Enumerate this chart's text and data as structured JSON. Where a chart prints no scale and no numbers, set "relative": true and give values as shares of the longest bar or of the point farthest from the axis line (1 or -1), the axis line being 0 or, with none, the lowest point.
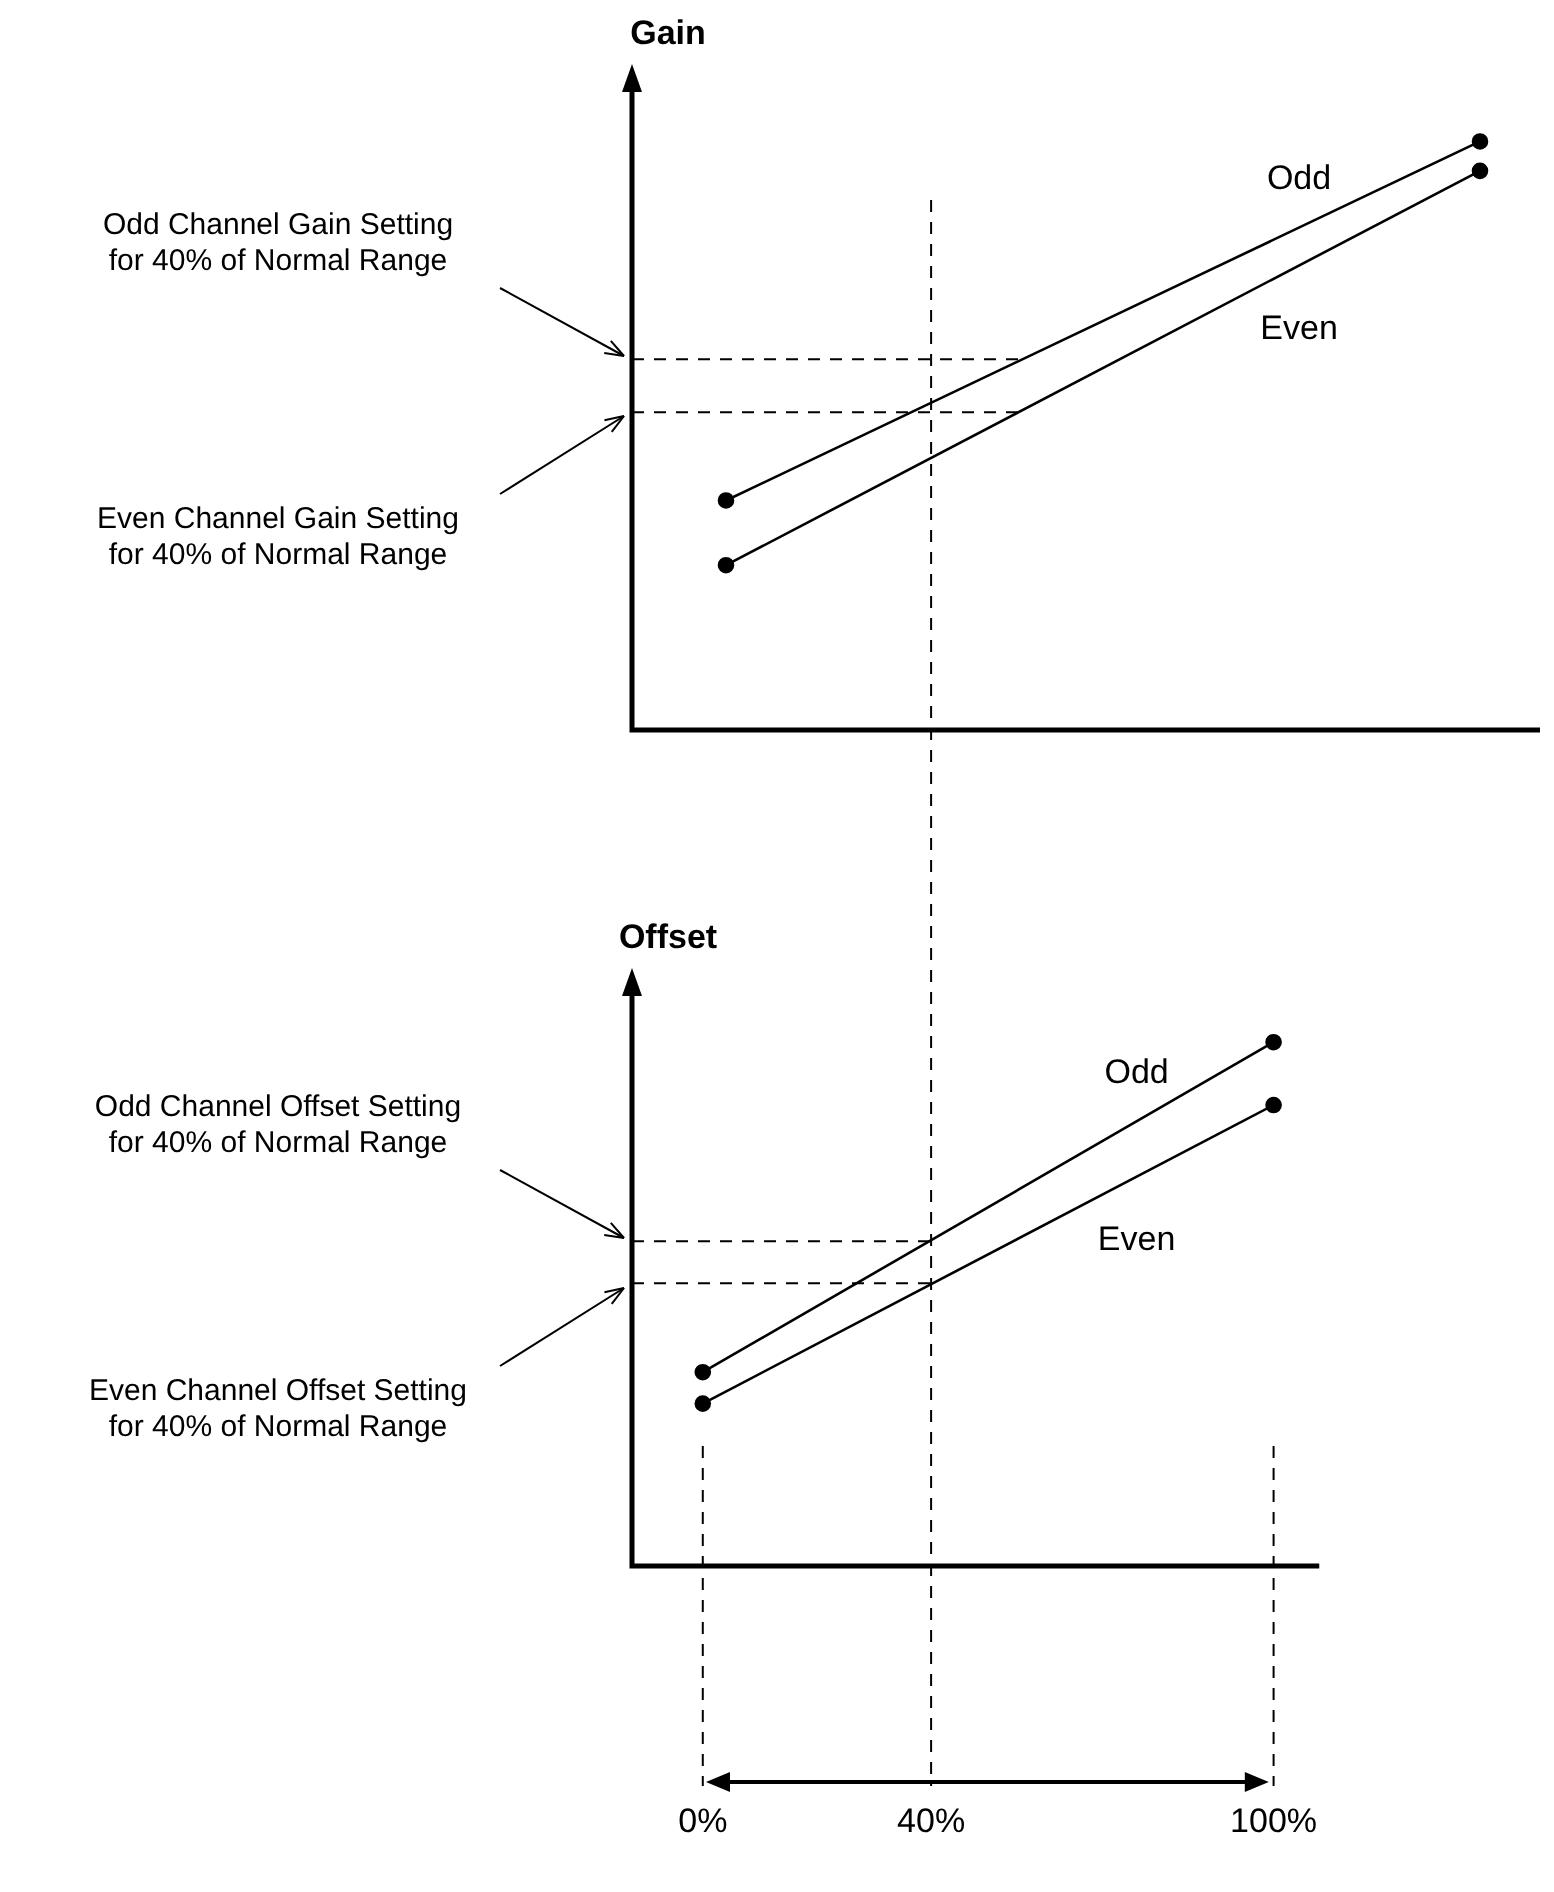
{
  "chart_data": [
    {
      "type": "line",
      "ylabel": "Gain",
      "categories": [
        null,
        null
      ],
      "tick_labels": false,
      "relative": true,
      "legend": false,
      "grid": false,
      "marker": "circle",
      "line_style": "solid",
      "series": [
        {
          "name": "Odd",
          "color": "#000000",
          "values": [
            0.39,
            1
          ]
        },
        {
          "name": "Even",
          "color": "#000000",
          "values": [
            0.28,
            0.95
          ]
        }
      ],
      "ref_lines": [
        {
          "axis": "y",
          "value": 0.63,
          "line_style": "dashed"
        },
        {
          "axis": "y",
          "value": 0.54,
          "line_style": "dashed"
        }
      ],
      "annotations": [
        "Odd Channel Gain Setting for 40% of Normal Range",
        "Even Channel Gain Setting for 40% of Normal Range"
      ]
    },
    {
      "type": "line",
      "ylabel": "Offset",
      "x": [
        0,
        100
      ],
      "xlim": [
        -12.4,
        108
      ],
      "xticks": [
        {
          "value": 0,
          "label": "0%"
        },
        {
          "value": 40,
          "label": "40%"
        },
        {
          "value": 100,
          "label": "100%"
        }
      ],
      "tick_labels": "x",
      "relative": true,
      "legend": false,
      "grid": false,
      "marker": "circle",
      "line_style": "solid",
      "series": [
        {
          "name": "Odd",
          "color": "#000000",
          "values": [
            0.37,
            1
          ]
        },
        {
          "name": "Even",
          "color": "#000000",
          "values": [
            0.31,
            0.88
          ]
        }
      ],
      "ref_lines": [
        {
          "axis": "x",
          "value": 0,
          "line_style": "dashed"
        },
        {
          "axis": "x",
          "value": 40,
          "line_style": "dashed"
        },
        {
          "axis": "x",
          "value": 100,
          "line_style": "dashed"
        },
        {
          "axis": "y",
          "value": 0.62,
          "line_style": "dashed"
        },
        {
          "axis": "y",
          "value": 0.54,
          "line_style": "dashed"
        }
      ],
      "annotations": [
        "Odd Channel Offset Setting for 40% of Normal Range",
        "Even Channel Offset Setting for 40% of Normal Range"
      ]
    }
  ]
}
